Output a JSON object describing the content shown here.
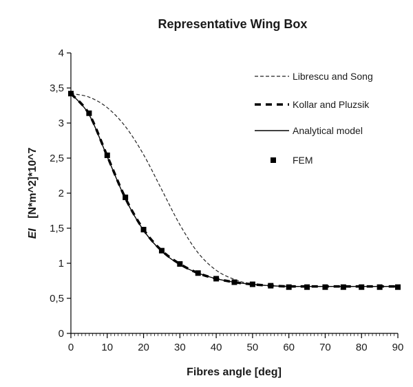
{
  "chart_data": {
    "type": "line",
    "title": "Representative Wing Box",
    "xlabel": "Fibres angle [deg]",
    "ylabel_symbol": "EI",
    "ylabel_units": "[N*m^2]*10^7",
    "xlim": [
      0,
      90
    ],
    "ylim": [
      0,
      4
    ],
    "x_ticks": [
      "0",
      "10",
      "20",
      "30",
      "40",
      "50",
      "60",
      "70",
      "80",
      "90"
    ],
    "y_ticks": [
      "0",
      "0,5",
      "1",
      "1,5",
      "2",
      "2,5",
      "3",
      "3,5",
      "4"
    ],
    "grid": false,
    "legend_position": "top-right",
    "series": [
      {
        "name": "Librescu and Song",
        "style": "thin-dashed",
        "x": [
          0,
          5,
          10,
          15,
          20,
          25,
          30,
          35,
          40,
          45,
          50,
          55,
          60,
          65,
          70,
          75,
          80,
          85,
          90
        ],
        "y": [
          3.42,
          3.37,
          3.22,
          2.95,
          2.55,
          2.05,
          1.55,
          1.15,
          0.9,
          0.77,
          0.7,
          0.68,
          0.67,
          0.67,
          0.67,
          0.67,
          0.67,
          0.67,
          0.67
        ]
      },
      {
        "name": "Kollar and Pluzsik",
        "style": "thick-dashed",
        "x": [
          0,
          5,
          10,
          15,
          20,
          25,
          30,
          35,
          40,
          45,
          50,
          55,
          60,
          65,
          70,
          75,
          80,
          85,
          90
        ],
        "y": [
          3.42,
          3.13,
          2.53,
          1.93,
          1.48,
          1.18,
          0.99,
          0.86,
          0.78,
          0.73,
          0.7,
          0.68,
          0.67,
          0.67,
          0.67,
          0.67,
          0.67,
          0.67,
          0.67
        ]
      },
      {
        "name": "Analytical model",
        "style": "solid",
        "x": [
          0,
          5,
          10,
          15,
          20,
          25,
          30,
          35,
          40,
          45,
          50,
          55,
          60,
          65,
          70,
          75,
          80,
          85,
          90
        ],
        "y": [
          3.42,
          3.12,
          2.52,
          1.92,
          1.47,
          1.17,
          0.98,
          0.86,
          0.78,
          0.73,
          0.7,
          0.68,
          0.67,
          0.67,
          0.67,
          0.67,
          0.67,
          0.67,
          0.67
        ]
      },
      {
        "name": "FEM",
        "style": "square-markers",
        "x": [
          0,
          5,
          10,
          15,
          20,
          25,
          30,
          35,
          40,
          45,
          50,
          55,
          60,
          65,
          70,
          75,
          80,
          85,
          90
        ],
        "y": [
          3.42,
          3.14,
          2.54,
          1.94,
          1.48,
          1.18,
          0.99,
          0.86,
          0.78,
          0.73,
          0.7,
          0.68,
          0.66,
          0.66,
          0.66,
          0.66,
          0.66,
          0.66,
          0.66
        ]
      }
    ]
  }
}
